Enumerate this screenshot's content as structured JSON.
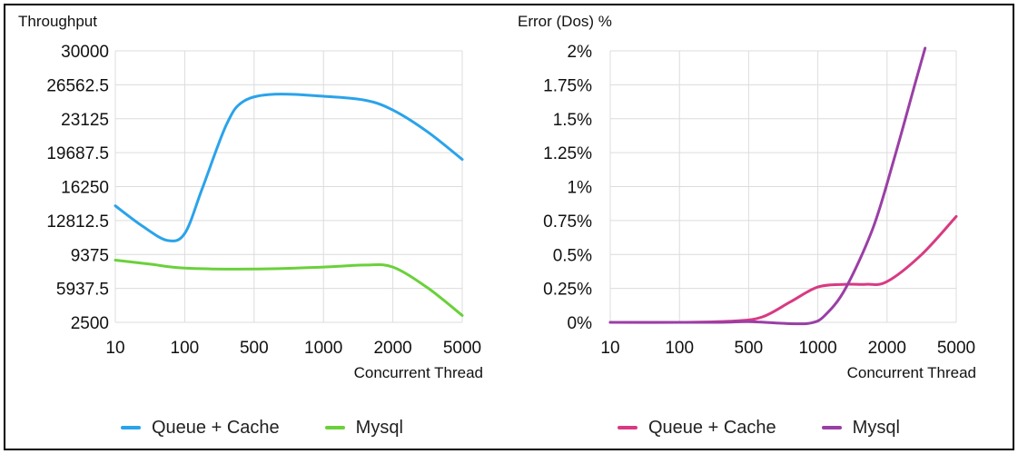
{
  "chart_data": [
    {
      "type": "line",
      "title": "Throughput",
      "xlabel": "Concurrent Thread",
      "ylabel": "",
      "categories": [
        "10",
        "100",
        "500",
        "1000",
        "2000",
        "5000"
      ],
      "ylim": [
        2500,
        30000
      ],
      "yticks": [
        "30000",
        "26562.5",
        "23125",
        "19687.5",
        "16250",
        "12812.5",
        "9375",
        "5937.5",
        "2500"
      ],
      "grid": true,
      "legend": "bottom",
      "series": [
        {
          "name": "Queue + Cache",
          "color": "#2aa3ea",
          "points": [
            [
              0,
              14300
            ],
            [
              0.4,
              12200
            ],
            [
              0.75,
              10800
            ],
            [
              1.0,
              11500
            ],
            [
              1.25,
              16000
            ],
            [
              1.6,
              22500
            ],
            [
              1.85,
              24900
            ],
            [
              2.3,
              25600
            ],
            [
              3.0,
              25400
            ],
            [
              3.6,
              25000
            ],
            [
              4.0,
              24000
            ],
            [
              4.5,
              21800
            ],
            [
              5.0,
              19000
            ]
          ]
        },
        {
          "name": "Mysql",
          "color": "#6ad13a",
          "points": [
            [
              0,
              8800
            ],
            [
              0.5,
              8400
            ],
            [
              1.0,
              8000
            ],
            [
              2.0,
              7900
            ],
            [
              3.0,
              8100
            ],
            [
              3.6,
              8300
            ],
            [
              4.0,
              8100
            ],
            [
              4.5,
              6000
            ],
            [
              5.0,
              3200
            ]
          ]
        }
      ]
    },
    {
      "type": "line",
      "title": "Error (Dos) %",
      "xlabel": "Concurrent Thread",
      "ylabel": "",
      "categories": [
        "10",
        "100",
        "500",
        "1000",
        "2000",
        "5000"
      ],
      "ylim": [
        0,
        2
      ],
      "yticks": [
        "2%",
        "1.75%",
        "1.5%",
        "1.25%",
        "1%",
        "0.75%",
        "0.5%",
        "0.25%",
        "0%"
      ],
      "grid": true,
      "legend": "bottom",
      "series": [
        {
          "name": "Queue + Cache",
          "color": "#d83a82",
          "points": [
            [
              0,
              0
            ],
            [
              1,
              0
            ],
            [
              1.8,
              0.01
            ],
            [
              2.2,
              0.04
            ],
            [
              2.6,
              0.15
            ],
            [
              3.0,
              0.26
            ],
            [
              3.4,
              0.28
            ],
            [
              3.7,
              0.28
            ],
            [
              4.0,
              0.3
            ],
            [
              4.5,
              0.5
            ],
            [
              5.0,
              0.78
            ]
          ]
        },
        {
          "name": "Mysql",
          "color": "#9a3fa6",
          "points": [
            [
              0,
              0
            ],
            [
              1.5,
              0
            ],
            [
              2.0,
              0.005
            ],
            [
              2.6,
              -0.01
            ],
            [
              2.9,
              -0.005
            ],
            [
              3.1,
              0.05
            ],
            [
              3.4,
              0.25
            ],
            [
              3.8,
              0.7
            ],
            [
              4.1,
              1.2
            ],
            [
              4.4,
              1.75
            ],
            [
              4.55,
              2.02
            ]
          ]
        }
      ]
    }
  ]
}
